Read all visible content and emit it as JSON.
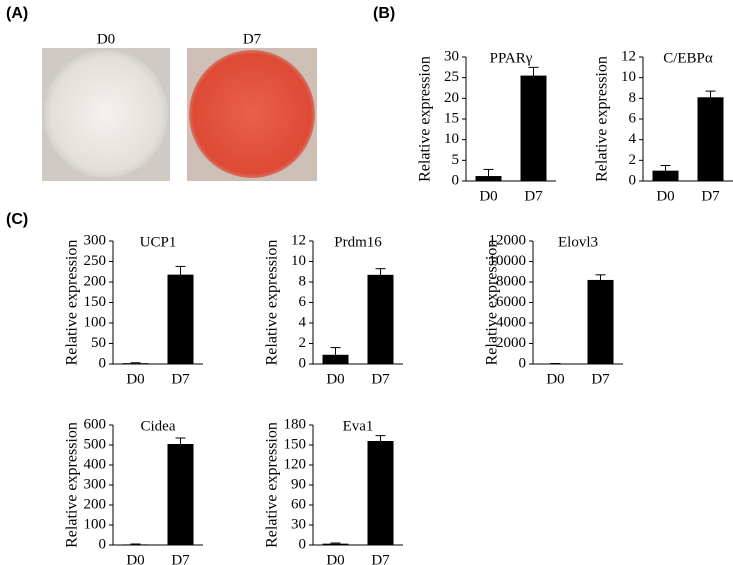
{
  "panels": {
    "a": {
      "label": "(A)",
      "images": [
        "D0",
        "D7"
      ]
    },
    "b": {
      "label": "(B)"
    },
    "c": {
      "label": "(C)"
    }
  },
  "chart_data": [
    {
      "type": "bar",
      "title": "PPARγ",
      "y_label": "Relative expression",
      "categories": [
        "D0",
        "D7"
      ],
      "values": [
        1.2,
        25.5
      ],
      "errors": [
        1.6,
        2.0
      ],
      "color": "#000000",
      "ylim": [
        0,
        30
      ],
      "yticks": [
        0,
        5,
        10,
        15,
        20,
        25,
        30
      ]
    },
    {
      "type": "bar",
      "title": "C/EBPα",
      "y_label": "Relative expression",
      "categories": [
        "D0",
        "D7"
      ],
      "values": [
        1.0,
        8.1
      ],
      "errors": [
        0.5,
        0.6
      ],
      "color": "#000000",
      "ylim": [
        0,
        12
      ],
      "yticks": [
        0,
        2,
        4,
        6,
        8,
        10,
        12
      ]
    },
    {
      "type": "bar",
      "title": "UCP1",
      "y_label": "Relative expression",
      "categories": [
        "D0",
        "D7"
      ],
      "values": [
        2,
        218
      ],
      "errors": [
        1,
        20
      ],
      "color": "#000000",
      "ylim": [
        0,
        300
      ],
      "yticks": [
        0,
        50,
        100,
        150,
        200,
        250,
        300
      ]
    },
    {
      "type": "bar",
      "title": "Prdm16",
      "y_label": "Relative expression",
      "categories": [
        "D0",
        "D7"
      ],
      "values": [
        0.9,
        8.7
      ],
      "errors": [
        0.7,
        0.6
      ],
      "color": "#000000",
      "ylim": [
        0,
        12
      ],
      "yticks": [
        0,
        2,
        4,
        6,
        8,
        10,
        12
      ]
    },
    {
      "type": "bar",
      "title": "Elovl3",
      "y_label": "Relative expression",
      "categories": [
        "D0",
        "D7"
      ],
      "values": [
        30,
        8200
      ],
      "errors": [
        20,
        500
      ],
      "color": "#000000",
      "ylim": [
        0,
        12000
      ],
      "yticks": [
        0,
        2000,
        4000,
        6000,
        8000,
        10000,
        12000
      ]
    },
    {
      "type": "bar",
      "title": "Cidea",
      "y_label": "Relative expression",
      "categories": [
        "D0",
        "D7"
      ],
      "values": [
        3,
        505
      ],
      "errors": [
        2,
        30
      ],
      "color": "#000000",
      "ylim": [
        0,
        600
      ],
      "yticks": [
        0,
        100,
        200,
        300,
        400,
        500,
        600
      ]
    },
    {
      "type": "bar",
      "title": "Eva1",
      "y_label": "Relative expression",
      "categories": [
        "D0",
        "D7"
      ],
      "values": [
        2,
        156
      ],
      "errors": [
        1,
        8
      ],
      "color": "#000000",
      "ylim": [
        0,
        180
      ],
      "yticks": [
        0,
        30,
        60,
        90,
        120,
        150,
        180
      ]
    }
  ]
}
